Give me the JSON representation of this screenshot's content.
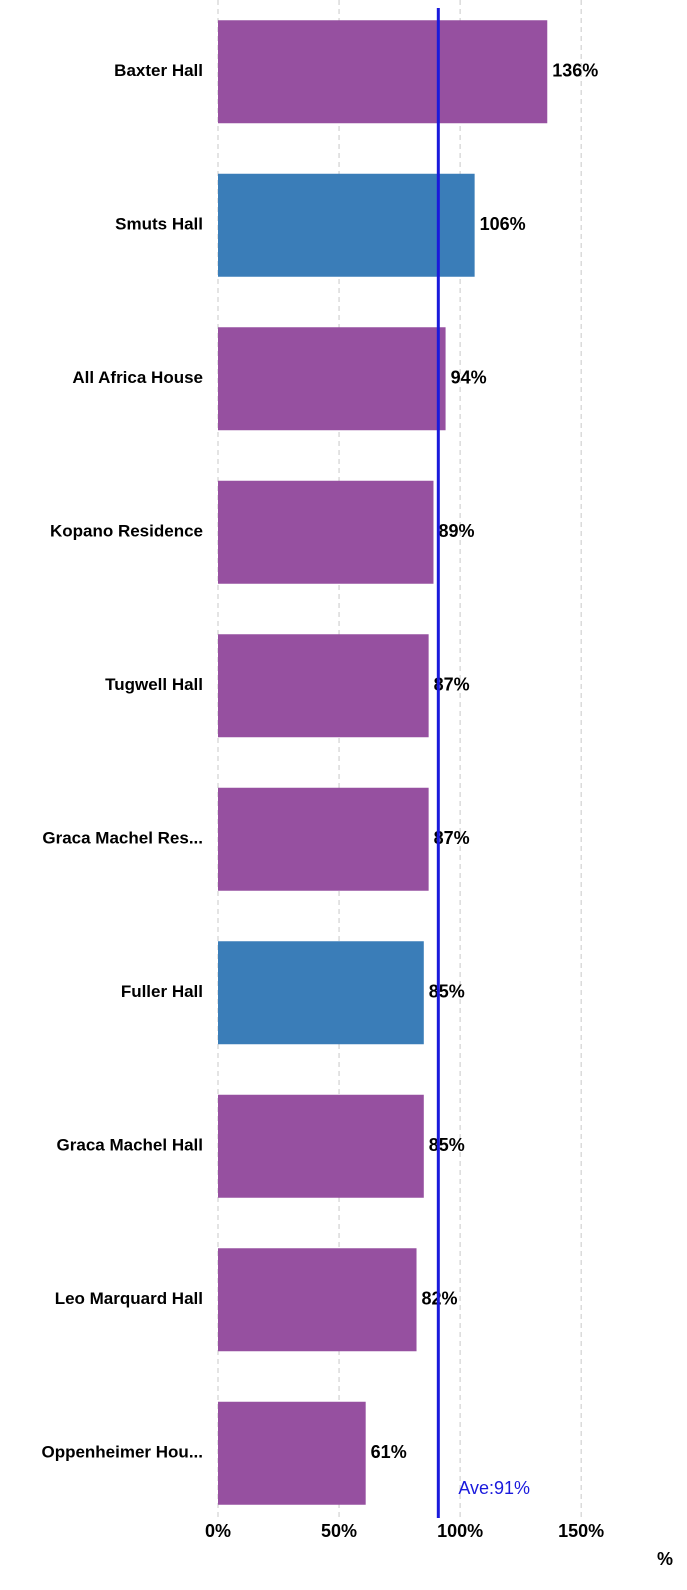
{
  "chart_data": {
    "type": "bar",
    "orientation": "horizontal",
    "categories": [
      "Baxter Hall",
      "Smuts Hall",
      "All Africa House",
      "Kopano Residence",
      "Tugwell Hall",
      "Graca Machel Res...",
      "Fuller Hall",
      "Graca Machel Hall",
      "Leo Marquard Hall",
      "Oppenheimer Hou..."
    ],
    "values": [
      136,
      106,
      94,
      89,
      87,
      87,
      85,
      85,
      82,
      61
    ],
    "value_labels": [
      "136%",
      "106%",
      "94%",
      "89%",
      "87%",
      "87%",
      "85%",
      "85%",
      "82%",
      "61%"
    ],
    "colors": [
      "#9650a0",
      "#3a7db8",
      "#9650a0",
      "#9650a0",
      "#9650a0",
      "#9650a0",
      "#3a7db8",
      "#9650a0",
      "#9650a0",
      "#9650a0"
    ],
    "xlim": [
      0,
      190
    ],
    "xticks": [
      {
        "value": 0,
        "label": "0%"
      },
      {
        "value": 50,
        "label": "50%"
      },
      {
        "value": 100,
        "label": "100%"
      },
      {
        "value": 150,
        "label": "150%"
      }
    ],
    "xlabel": "%",
    "grid": true,
    "average": {
      "value": 91,
      "label": "Ave:91%",
      "color": "#1a1adc"
    }
  }
}
